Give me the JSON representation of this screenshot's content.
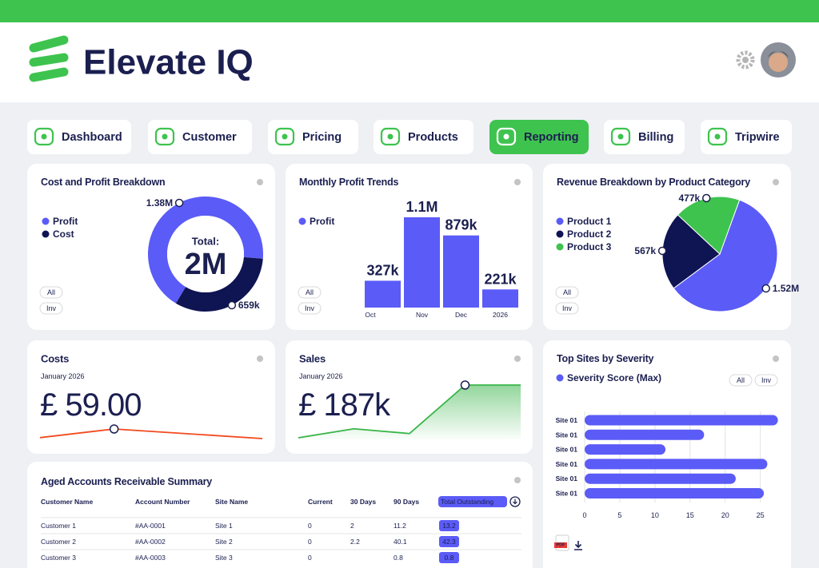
{
  "header": {
    "brand": "Elevate IQ"
  },
  "nav": [
    "Dashboard",
    "Customer",
    "Pricing",
    "Products",
    "Reporting",
    "Billing",
    "Tripwire"
  ],
  "nav_active": 4,
  "chart_data": [
    {
      "type": "donut",
      "title": "Cost and Profit Breakdown",
      "categories": [
        "Profit",
        "Cost"
      ],
      "values": [
        1380000,
        659000
      ],
      "value_labels": [
        "1.38M",
        "659k"
      ],
      "colors": [
        "#5b5bf7",
        "#0f1452"
      ],
      "total_title": "Total:",
      "total_label": "2M",
      "filters": [
        "All",
        "Inv"
      ]
    },
    {
      "type": "bar",
      "title": "Monthly Profit Trends",
      "categories": [
        "Oct",
        "Nov",
        "Dec",
        "2026"
      ],
      "series": [
        {
          "name": "Profit",
          "color": "#5b5bf7",
          "values": [
            327000,
            1100000,
            879000,
            221000
          ],
          "value_labels": [
            "327k",
            "1.1M",
            "879k",
            "221k"
          ]
        }
      ],
      "filters": [
        "All",
        "Inv"
      ]
    },
    {
      "type": "pie",
      "title": "Revenue Breakdown by Product Category",
      "categories": [
        "Product 1",
        "Product 2",
        "Product 3"
      ],
      "values": [
        1520000,
        567000,
        477000
      ],
      "value_labels": [
        "1.52M",
        "567k",
        "477k"
      ],
      "colors": [
        "#5b5bf7",
        "#0f1452",
        "#3ec34f"
      ],
      "filters": [
        "All",
        "Inv"
      ]
    },
    {
      "type": "line",
      "title": "Costs",
      "subtitle": "January 2026",
      "kpi": "£ 59.00",
      "color": "#f24a1d",
      "area": false,
      "values": [
        1,
        10,
        5,
        0
      ]
    },
    {
      "type": "line",
      "title": "Sales",
      "subtitle": "January 2026",
      "kpi": "£ 187k",
      "color": "#3ab54a",
      "area": true,
      "values": [
        0,
        17,
        8,
        100,
        100
      ]
    },
    {
      "type": "hbar",
      "title": "Top Sites by Severity",
      "categories": [
        "Site 01",
        "Site 01",
        "Site 01",
        "Site 01",
        "Site 01",
        "Site 01"
      ],
      "series": [
        {
          "name": "Severity Score (Max)",
          "color": "#5b5bf7",
          "values": [
            27.5,
            17,
            11.5,
            26,
            21.5,
            25.5
          ]
        }
      ],
      "xlim": [
        0,
        28
      ],
      "xticks": [
        0,
        5,
        10,
        15,
        20,
        25
      ],
      "grid": true,
      "filters": [
        "All",
        "Inv"
      ],
      "export_label": "PDF"
    }
  ],
  "table": {
    "title": "Aged Accounts Receivable Summary",
    "columns": [
      "Customer Name",
      "Account Number",
      "Site Name",
      "Current",
      "30 Days",
      "90 Days",
      "Total Outstanding"
    ],
    "rows": [
      [
        "Customer 1",
        "#AA-0001",
        "Site 1",
        "0",
        "2",
        "11.2",
        "13.2"
      ],
      [
        "Customer 2",
        "#AA-0002",
        "Site 2",
        "0",
        "2.2",
        "40.1",
        "42.3"
      ],
      [
        "Customer 3",
        "#AA-0003",
        "Site 3",
        "0",
        null,
        "0.8",
        "0.8"
      ]
    ]
  }
}
